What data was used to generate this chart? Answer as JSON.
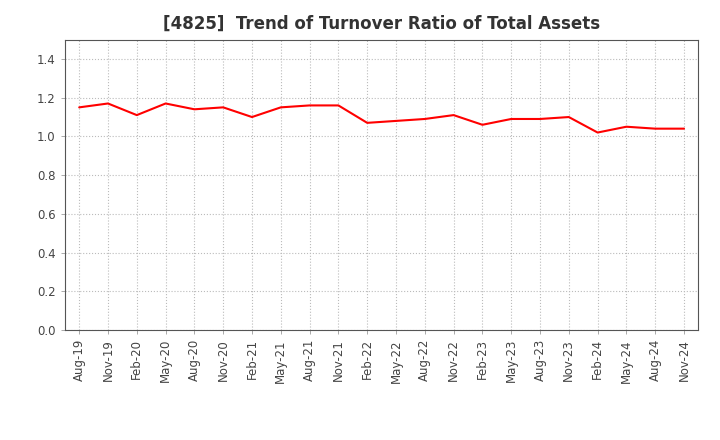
{
  "title": "[4825]  Trend of Turnover Ratio of Total Assets",
  "x_labels": [
    "Aug-19",
    "Nov-19",
    "Feb-20",
    "May-20",
    "Aug-20",
    "Nov-20",
    "Feb-21",
    "May-21",
    "Aug-21",
    "Nov-21",
    "Feb-22",
    "May-22",
    "Aug-22",
    "Nov-22",
    "Feb-23",
    "May-23",
    "Aug-23",
    "Nov-23",
    "Feb-24",
    "May-24",
    "Aug-24",
    "Nov-24"
  ],
  "y_values": [
    1.15,
    1.17,
    1.11,
    1.17,
    1.14,
    1.15,
    1.1,
    1.15,
    1.16,
    1.16,
    1.07,
    1.08,
    1.09,
    1.11,
    1.06,
    1.09,
    1.09,
    1.1,
    1.02,
    1.05,
    1.04,
    1.04
  ],
  "line_color": "#FF0000",
  "line_width": 1.5,
  "ylim": [
    0.0,
    1.5
  ],
  "yticks": [
    0.0,
    0.2,
    0.4,
    0.6,
    0.8,
    1.0,
    1.2,
    1.4
  ],
  "background_color": "#ffffff",
  "plot_bg_color": "#ffffff",
  "grid_color": "#bbbbbb",
  "title_fontsize": 12,
  "tick_fontsize": 8.5,
  "title_color": "#333333",
  "tick_color": "#444444"
}
